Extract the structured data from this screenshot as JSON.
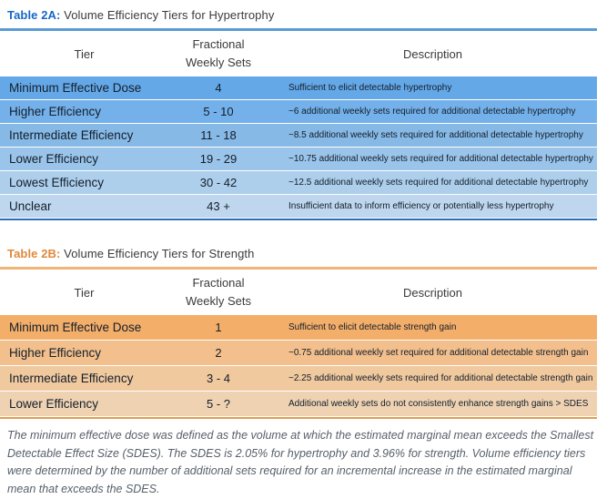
{
  "tables": [
    {
      "label": "Table 2A:",
      "title": " Volume Efficiency Tiers for Hypertrophy",
      "theme": {
        "accent": "#1766c4",
        "rule": "#5b9bd5",
        "border": "#2c6fbb"
      },
      "headers": {
        "tier": "Tier",
        "sets": "Fractional Weekly Sets",
        "description": "Description"
      },
      "rows": [
        {
          "tier": "Minimum Effective Dose",
          "sets": "4",
          "description": "Sufficient to elicit detectable hypertrophy",
          "bg": "#64a8e8"
        },
        {
          "tier": "Higher Efficiency",
          "sets": "5 - 10",
          "description": "~6 additional weekly sets required for additional detectable hypertrophy",
          "bg": "#74b1ea"
        },
        {
          "tier": "Intermediate Efficiency",
          "sets": "11 - 18",
          "description": "~8.5 additional weekly sets required for additional detectable hypertrophy",
          "bg": "#87b9e6"
        },
        {
          "tier": "Lower Efficiency",
          "sets": "19 - 29",
          "description": "~10.75 additional weekly sets required for additional detectable hypertrophy",
          "bg": "#9ac4ea"
        },
        {
          "tier": "Lowest Efficiency",
          "sets": "30 - 42",
          "description": "~12.5 additional weekly sets required for additional detectable hypertrophy",
          "bg": "#adcfec"
        },
        {
          "tier": "Unclear",
          "sets": "43 +",
          "description": "Insufficient data to inform efficiency or potentially less hypertrophy",
          "bg": "#bed7ee"
        }
      ]
    },
    {
      "label": "Table 2B:",
      "title": " Volume Efficiency Tiers for Strength",
      "theme": {
        "accent": "#e0883c",
        "rule": "#f0b478",
        "border": "#e79c4e"
      },
      "headers": {
        "tier": "Tier",
        "sets": "Fractional Weekly Sets",
        "description": "Description"
      },
      "rows": [
        {
          "tier": "Minimum Effective Dose",
          "sets": "1",
          "description": "Sufficient to elicit detectable strength gain",
          "bg": "#f3ae6a"
        },
        {
          "tier": "Higher Efficiency",
          "sets": "2",
          "description": "~0.75 additional weekly set required for additional detectable strength gain",
          "bg": "#f2bf8d"
        },
        {
          "tier": "Intermediate Efficiency",
          "sets": "3 - 4",
          "description": "~2.25 additional weekly sets required for additional detectable strength gain",
          "bg": "#f0c99f"
        },
        {
          "tier": "Lower Efficiency",
          "sets": "5 - ?",
          "description": "Additional weekly sets do not consistently enhance strength gains > SDES",
          "bg": "#eed2b2"
        }
      ]
    }
  ],
  "footnote": "The minimum effective dose was defined as the volume at which the estimated marginal mean exceeds the Smallest Detectable Effect Size (SDES). The SDES is 2.05% for hypertrophy and 3.96% for strength. Volume efficiency tiers were determined by the number of additional sets required for an incremental increase in the estimated marginal mean that exceeds the SDES."
}
